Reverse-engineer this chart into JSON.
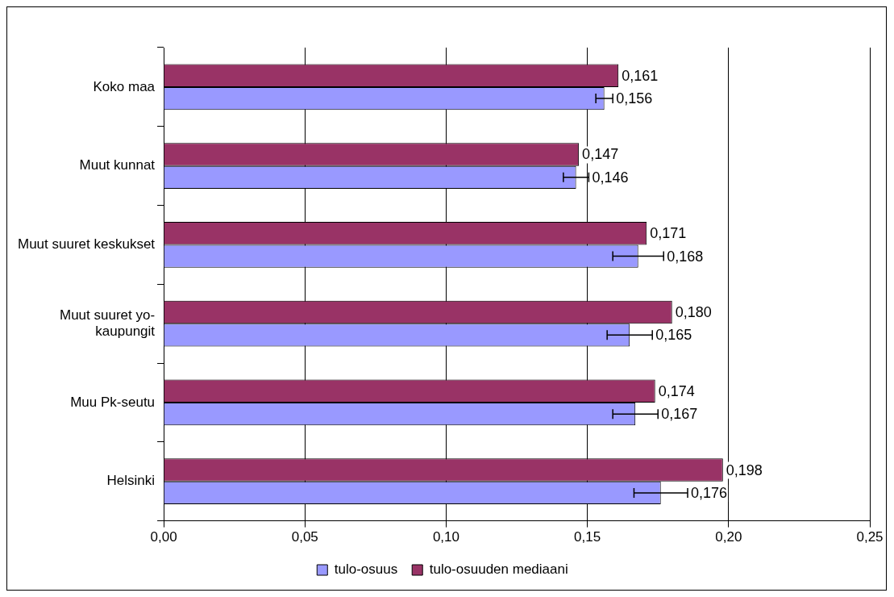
{
  "chart_data": {
    "type": "bar",
    "orientation": "horizontal",
    "categories": [
      "Koko maa",
      "Muut kunnat",
      "Muut suuret keskukset",
      "Muut suuret yo-kaupungit",
      "Muu Pk-seutu",
      "Helsinki"
    ],
    "series": [
      {
        "name": "tulo-osuus",
        "color": "#9999ff",
        "values": [
          0.156,
          0.146,
          0.168,
          0.165,
          0.167,
          0.176
        ],
        "errors": [
          0.003,
          0.0045,
          0.009,
          0.008,
          0.008,
          0.0095
        ],
        "value_labels": [
          "0,156",
          "0,146",
          "0,168",
          "0,165",
          "0,167",
          "0,176"
        ]
      },
      {
        "name": "tulo-osuuden mediaani",
        "color": "#993366",
        "values": [
          0.161,
          0.147,
          0.171,
          0.18,
          0.174,
          0.198
        ],
        "value_labels": [
          "0,161",
          "0,147",
          "0,171",
          "0,180",
          "0,174",
          "0,198"
        ]
      }
    ],
    "xlim": [
      0,
      0.25
    ],
    "xticks": [
      {
        "value": 0,
        "label": "0,00"
      },
      {
        "value": 0.05,
        "label": "0,05"
      },
      {
        "value": 0.1,
        "label": "0,10"
      },
      {
        "value": 0.15,
        "label": "0,15"
      },
      {
        "value": 0.2,
        "label": "0,20"
      },
      {
        "value": 0.25,
        "label": "0,25"
      }
    ],
    "grid": "x",
    "legend": "bottom"
  }
}
